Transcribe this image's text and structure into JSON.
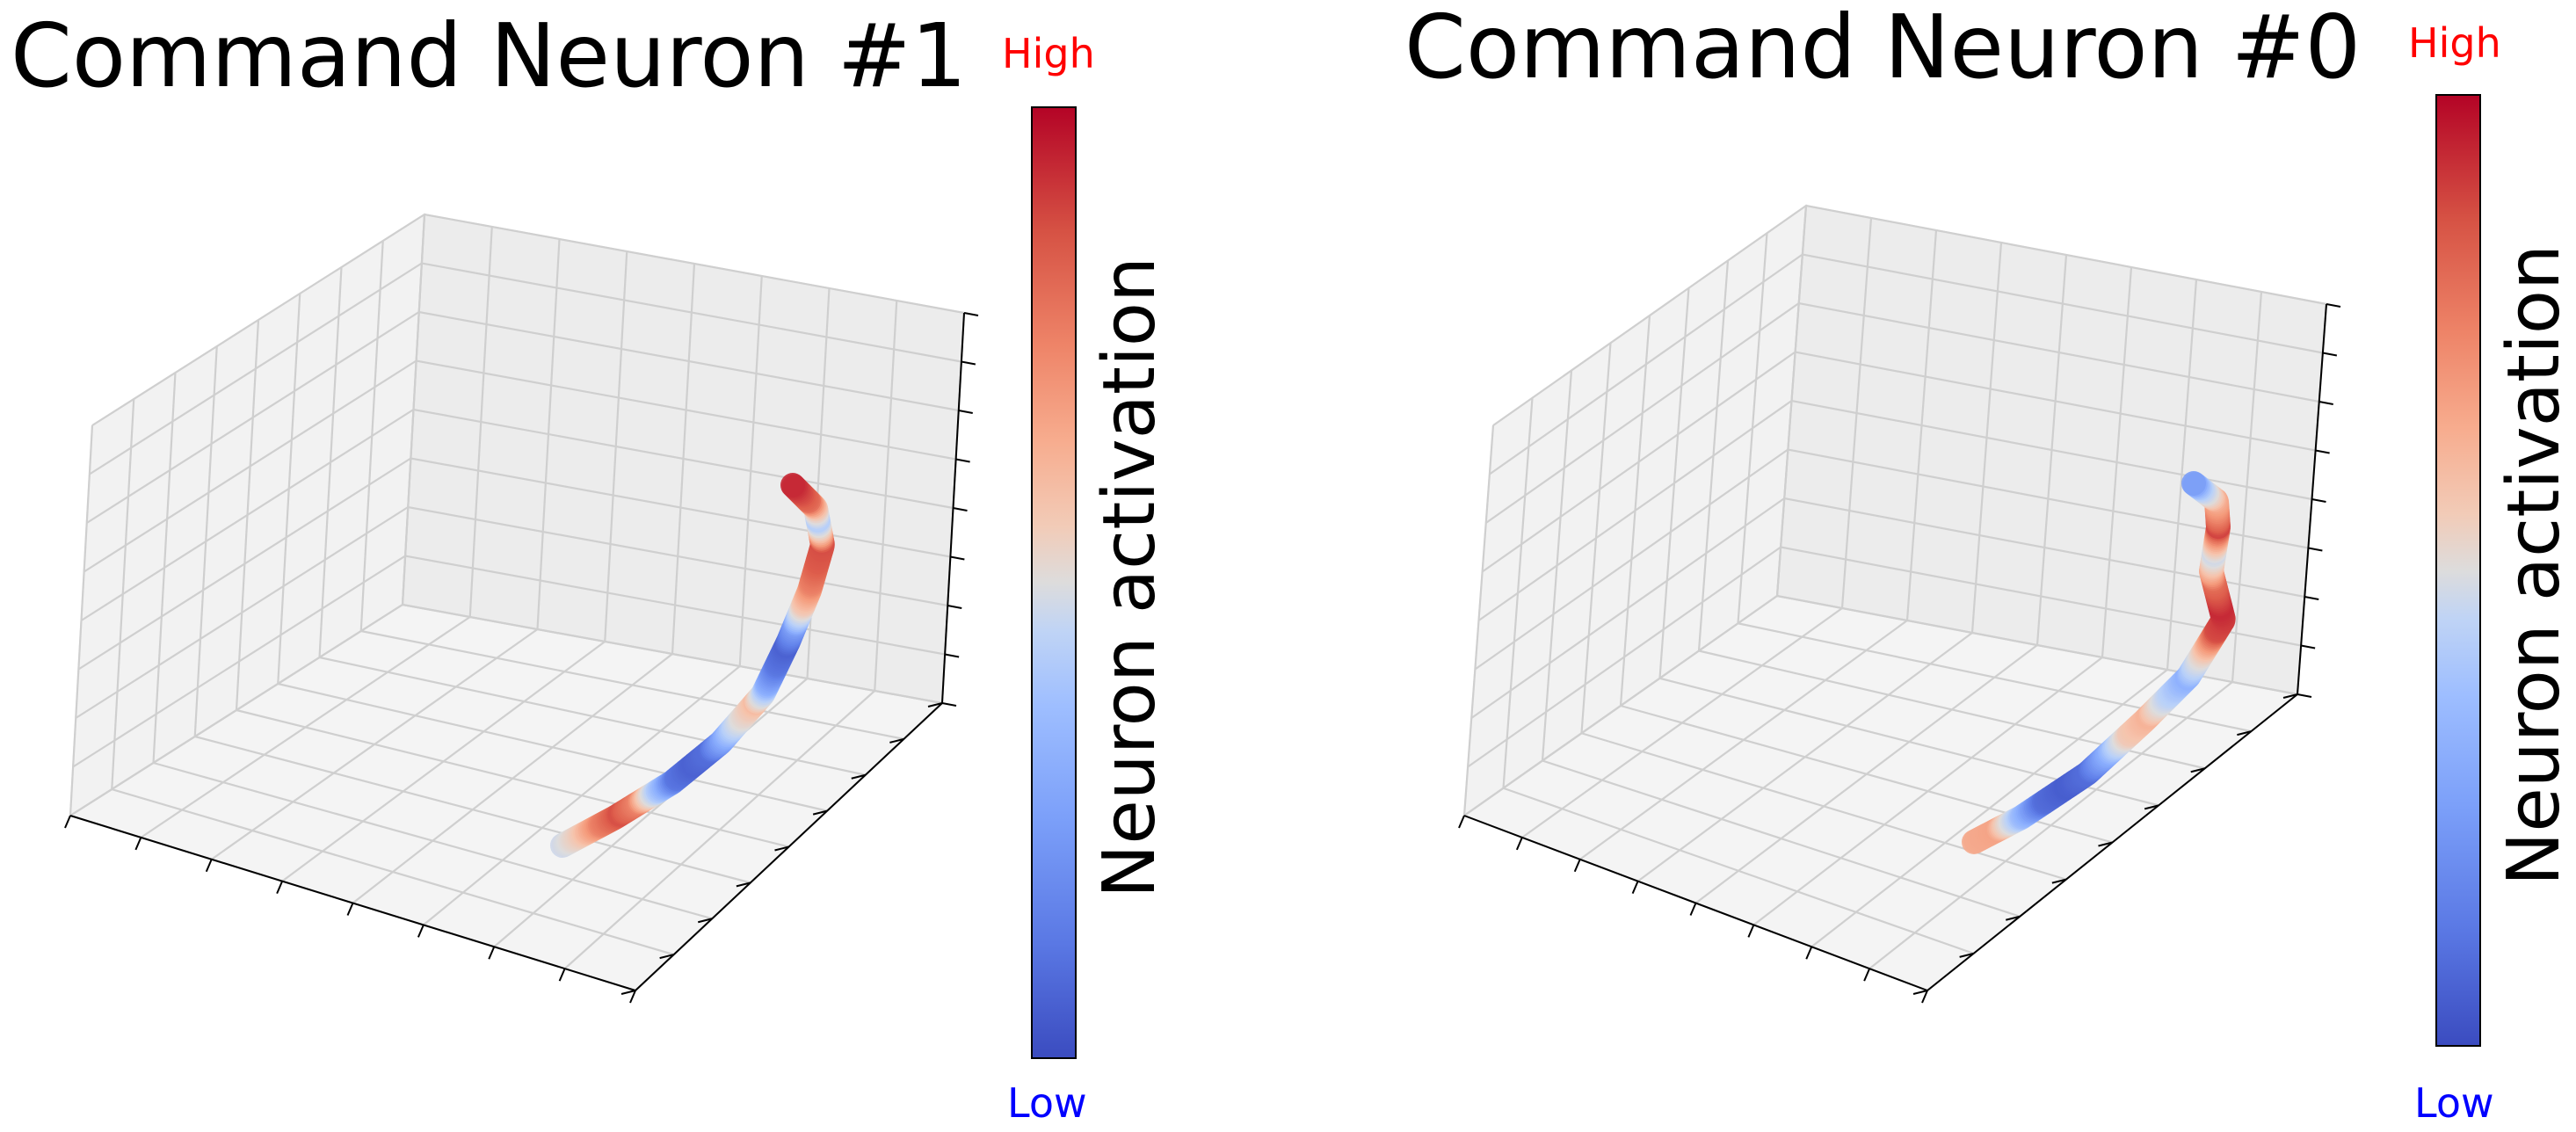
{
  "chart_data": [
    {
      "type": "scatter",
      "projection": "3d",
      "title": "Command Neuron #1",
      "grid": true,
      "tick_labels": false,
      "colormap": "coolwarm",
      "colorbar": {
        "label": "Neuron  activation",
        "high_label": "High",
        "low_label": "Low"
      },
      "activations": [
        0.45,
        0.6,
        0.8,
        0.9,
        0.8,
        0.35,
        0.1,
        0.05,
        0.08,
        0.25,
        0.5,
        0.65,
        0.25,
        0.1,
        0.05,
        0.2,
        0.6,
        0.8,
        0.88,
        0.9,
        0.35,
        0.85,
        0.95
      ]
    },
    {
      "type": "scatter",
      "projection": "3d",
      "title": "Command Neuron #0",
      "grid": true,
      "tick_labels": false,
      "colormap": "coolwarm",
      "colorbar": {
        "label": "Neuron activation",
        "high_label": "High",
        "low_label": "Low"
      },
      "activations": [
        0.7,
        0.72,
        0.3,
        0.08,
        0.04,
        0.08,
        0.25,
        0.6,
        0.68,
        0.4,
        0.25,
        0.55,
        0.9,
        0.95,
        0.85,
        0.45,
        0.92,
        0.7,
        0.2
      ]
    }
  ]
}
